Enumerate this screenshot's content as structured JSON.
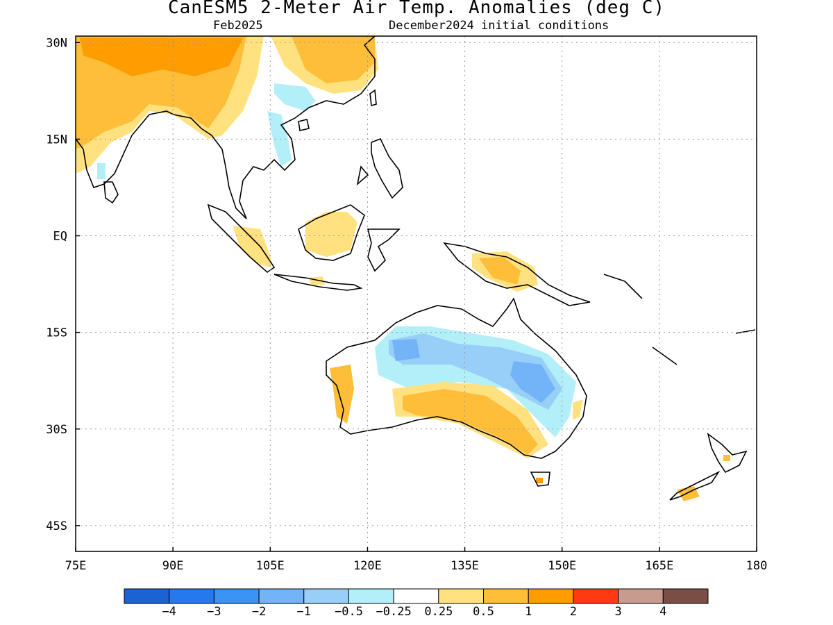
{
  "header": {
    "title": "CanESM5 2-Meter Air Temp. Anomalies (deg C)",
    "valid_month": "Feb2025",
    "initial_conditions": "December2024 initial conditions"
  },
  "map": {
    "extent": {
      "lon": [
        75,
        180
      ],
      "lat": [
        -49,
        31
      ]
    },
    "lat_ticks": [
      {
        "value": 30,
        "label": "30N"
      },
      {
        "value": 15,
        "label": "15N"
      },
      {
        "value": 0,
        "label": "EQ"
      },
      {
        "value": -15,
        "label": "15S"
      },
      {
        "value": -30,
        "label": "30S"
      },
      {
        "value": -45,
        "label": "45S"
      }
    ],
    "lon_ticks": [
      {
        "value": 75,
        "label": "75E"
      },
      {
        "value": 90,
        "label": "90E"
      },
      {
        "value": 105,
        "label": "105E"
      },
      {
        "value": 120,
        "label": "120E"
      },
      {
        "value": 135,
        "label": "135E"
      },
      {
        "value": 150,
        "label": "150E"
      },
      {
        "value": 165,
        "label": "165E"
      },
      {
        "value": 180,
        "label": "180"
      }
    ],
    "grid": true
  },
  "colorbar": {
    "colors": [
      "#1b62d2",
      "#2579ed",
      "#3b93f4",
      "#73b3f7",
      "#97cff8",
      "#b2eff9",
      "#ffffff",
      "#ffe27f",
      "#ffbe3a",
      "#ff9c00",
      "#ff3a12",
      "#c79c8f",
      "#7a4d45"
    ],
    "labels": [
      "−4",
      "−3",
      "−2",
      "−1",
      "−0.5",
      "−0.25",
      "0.25",
      "0.5",
      "1",
      "2",
      "3",
      "4"
    ]
  }
}
